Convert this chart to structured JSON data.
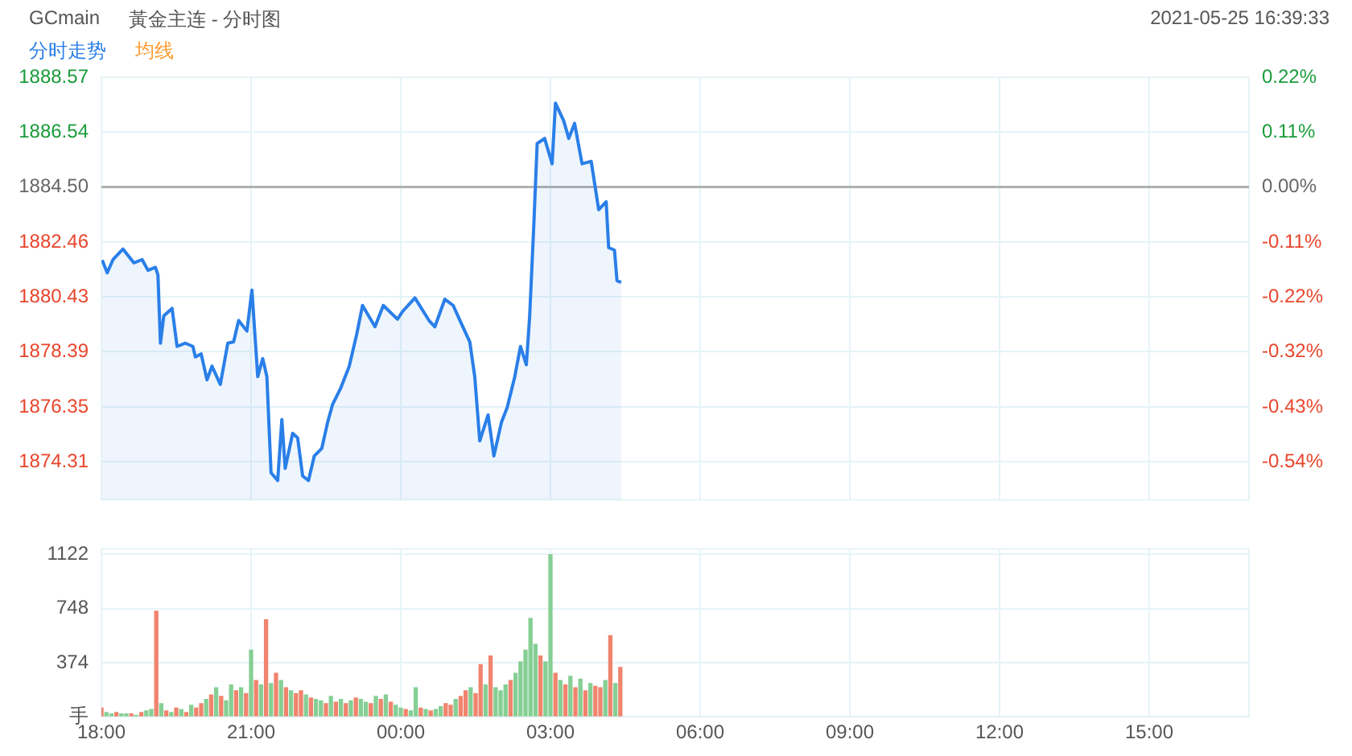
{
  "chart_data": [
    {
      "type": "area",
      "title": "GCmain",
      "subtitle": "黃金主连 - 分时图",
      "annotations": [
        "2021-05-25 16:39:33"
      ],
      "xlim": [
        "2021-05-24T18:00",
        "2021-05-25T17:00"
      ],
      "xticks": [
        {
          "value": "2021-05-24T18:00",
          "label": null
        },
        {
          "value": "2021-05-24T21:00",
          "label": null
        },
        {
          "value": "2021-05-25T00:00",
          "label": null
        },
        {
          "value": "2021-05-25T03:00",
          "label": null
        },
        {
          "value": "2021-05-25T06:00",
          "label": null
        },
        {
          "value": "2021-05-25T09:00",
          "label": null
        },
        {
          "value": "2021-05-25T12:00",
          "label": null
        },
        {
          "value": "2021-05-25T15:00",
          "label": null
        }
      ],
      "ylim": [
        1872.9,
        1888.57
      ],
      "yticks": [
        1874.31,
        1876.35,
        1878.39,
        1880.43,
        1882.46,
        {
          "value": 1884.5,
          "label": "1884.50"
        },
        1886.54,
        1888.57
      ],
      "y2lim": [
        -0.6155,
        0.216
      ],
      "y2ticks": [
        {
          "value": -0.5407,
          "label": "-0.54%"
        },
        {
          "value": -0.4325,
          "label": "-0.43%"
        },
        {
          "value": -0.3242,
          "label": "-0.32%"
        },
        {
          "value": -0.2165,
          "label": "-0.22%"
        },
        {
          "value": -0.1083,
          "label": "-0.11%"
        },
        {
          "value": 0,
          "label": "0.00%"
        },
        {
          "value": 0.1083,
          "label": "0.11%"
        },
        {
          "value": 0.216,
          "label": "0.22%"
        }
      ],
      "tick_labels": "y",
      "grid": true,
      "legend": "top left",
      "marker": "none",
      "line_style": "solid",
      "ref_lines": [
        {
          "axis": "y",
          "value": 1884.5,
          "color": "#b0b0b0"
        }
      ],
      "series": [
        {
          "name": "分时走势",
          "color": "#2a7fe8",
          "x": [
            "2021-05-24T18:01",
            "2021-05-24T18:07",
            "2021-05-24T18:14",
            "2021-05-24T18:26",
            "2021-05-24T18:39",
            "2021-05-24T18:49",
            "2021-05-24T18:56",
            "2021-05-24T19:05",
            "2021-05-24T19:08",
            "2021-05-24T19:11",
            "2021-05-24T19:15",
            "2021-05-24T19:25",
            "2021-05-24T19:31",
            "2021-05-24T19:41",
            "2021-05-24T19:50",
            "2021-05-24T19:53",
            "2021-05-24T20:00",
            "2021-05-24T20:07",
            "2021-05-24T20:13",
            "2021-05-24T20:23",
            "2021-05-24T20:32",
            "2021-05-24T20:39",
            "2021-05-24T20:45",
            "2021-05-24T20:55",
            "2021-05-24T21:01",
            "2021-05-24T21:08",
            "2021-05-24T21:14",
            "2021-05-24T21:19",
            "2021-05-24T21:24",
            "2021-05-24T21:32",
            "2021-05-24T21:37",
            "2021-05-24T21:41",
            "2021-05-24T21:50",
            "2021-05-24T21:56",
            "2021-05-24T22:02",
            "2021-05-24T22:09",
            "2021-05-24T22:16",
            "2021-05-24T22:25",
            "2021-05-24T22:32",
            "2021-05-24T22:38",
            "2021-05-24T22:48",
            "2021-05-24T22:58",
            "2021-05-24T23:07",
            "2021-05-24T23:14",
            "2021-05-24T23:29",
            "2021-05-24T23:39",
            "2021-05-24T23:56",
            "2021-05-25T00:02",
            "2021-05-25T00:17",
            "2021-05-25T00:34",
            "2021-05-25T00:41",
            "2021-05-25T00:53",
            "2021-05-25T01:03",
            "2021-05-25T01:13",
            "2021-05-25T01:23",
            "2021-05-25T01:29",
            "2021-05-25T01:35",
            "2021-05-25T01:45",
            "2021-05-25T01:52",
            "2021-05-25T02:01",
            "2021-05-25T02:08",
            "2021-05-25T02:17",
            "2021-05-25T02:24",
            "2021-05-25T02:31",
            "2021-05-25T02:35",
            "2021-05-25T02:40",
            "2021-05-25T02:44",
            "2021-05-25T02:53",
            "2021-05-25T03:02",
            "2021-05-25T03:06",
            "2021-05-25T03:16",
            "2021-05-25T03:22",
            "2021-05-25T03:29",
            "2021-05-25T03:38",
            "2021-05-25T03:49",
            "2021-05-25T03:58",
            "2021-05-25T04:07",
            "2021-05-25T04:10",
            "2021-05-25T04:17",
            "2021-05-25T04:20",
            "2021-05-25T04:25"
          ],
          "values": [
            1881.79,
            1881.32,
            1881.81,
            1882.2,
            1881.69,
            1881.81,
            1881.41,
            1881.52,
            1881.24,
            1878.71,
            1879.72,
            1880.0,
            1878.59,
            1878.71,
            1878.59,
            1878.2,
            1878.31,
            1877.35,
            1877.86,
            1877.18,
            1878.71,
            1878.76,
            1879.55,
            1879.16,
            1880.68,
            1877.47,
            1878.14,
            1877.47,
            1873.91,
            1873.62,
            1875.88,
            1874.07,
            1875.37,
            1875.2,
            1873.79,
            1873.62,
            1874.53,
            1874.81,
            1875.77,
            1876.44,
            1877.06,
            1877.85,
            1879.04,
            1880.11,
            1879.32,
            1880.11,
            1879.6,
            1879.88,
            1880.39,
            1879.55,
            1879.32,
            1880.34,
            1880.11,
            1879.43,
            1878.76,
            1877.46,
            1875.09,
            1876.05,
            1874.53,
            1875.77,
            1876.33,
            1877.46,
            1878.59,
            1877.91,
            1879.71,
            1883.1,
            1886.11,
            1886.3,
            1885.36,
            1887.61,
            1886.95,
            1886.3,
            1886.86,
            1885.36,
            1885.45,
            1883.66,
            1883.95,
            1882.25,
            1882.16,
            1881.03,
            1880.96
          ]
        },
        {
          "name": "均线",
          "color": "#ff9a2e"
        }
      ]
    },
    {
      "type": "bar",
      "xlim": [
        "2021-05-24T18:00",
        "2021-05-25T17:00"
      ],
      "xticks": [
        {
          "value": "2021-05-24T18:00",
          "label": "18:00"
        },
        {
          "value": "2021-05-24T21:00",
          "label": "21:00"
        },
        {
          "value": "2021-05-25T00:00",
          "label": "00:00"
        },
        {
          "value": "2021-05-25T03:00",
          "label": "03:00"
        },
        {
          "value": "2021-05-25T06:00",
          "label": "06:00"
        },
        {
          "value": "2021-05-25T09:00",
          "label": "09:00"
        },
        {
          "value": "2021-05-25T12:00",
          "label": "12:00"
        },
        {
          "value": "2021-05-25T15:00",
          "label": "15:00"
        }
      ],
      "ylim": [
        0,
        1160
      ],
      "yticks": [
        {
          "value": 0,
          "label": "手"
        },
        374,
        748,
        1122
      ],
      "grid": true,
      "x": [
        "2021-05-24T18:00",
        "2021-05-24T18:06",
        "2021-05-24T18:12",
        "2021-05-24T18:18",
        "2021-05-24T18:24",
        "2021-05-24T18:30",
        "2021-05-24T18:36",
        "2021-05-24T18:42",
        "2021-05-24T18:48",
        "2021-05-24T18:54",
        "2021-05-24T19:00",
        "2021-05-24T19:06",
        "2021-05-24T19:12",
        "2021-05-24T19:18",
        "2021-05-24T19:24",
        "2021-05-24T19:30",
        "2021-05-24T19:36",
        "2021-05-24T19:42",
        "2021-05-24T19:48",
        "2021-05-24T19:54",
        "2021-05-24T20:00",
        "2021-05-24T20:06",
        "2021-05-24T20:12",
        "2021-05-24T20:18",
        "2021-05-24T20:24",
        "2021-05-24T20:30",
        "2021-05-24T20:36",
        "2021-05-24T20:42",
        "2021-05-24T20:48",
        "2021-05-24T20:54",
        "2021-05-24T21:00",
        "2021-05-24T21:06",
        "2021-05-24T21:12",
        "2021-05-24T21:18",
        "2021-05-24T21:24",
        "2021-05-24T21:30",
        "2021-05-24T21:36",
        "2021-05-24T21:42",
        "2021-05-24T21:48",
        "2021-05-24T21:54",
        "2021-05-24T22:00",
        "2021-05-24T22:06",
        "2021-05-24T22:12",
        "2021-05-24T22:18",
        "2021-05-24T22:24",
        "2021-05-24T22:30",
        "2021-05-24T22:36",
        "2021-05-24T22:42",
        "2021-05-24T22:48",
        "2021-05-24T22:54",
        "2021-05-24T23:00",
        "2021-05-24T23:06",
        "2021-05-24T23:12",
        "2021-05-24T23:18",
        "2021-05-24T23:24",
        "2021-05-24T23:30",
        "2021-05-24T23:36",
        "2021-05-24T23:42",
        "2021-05-24T23:48",
        "2021-05-24T23:54",
        "2021-05-25T00:00",
        "2021-05-25T00:06",
        "2021-05-25T00:12",
        "2021-05-25T00:18",
        "2021-05-25T00:24",
        "2021-05-25T00:30",
        "2021-05-25T00:36",
        "2021-05-25T00:42",
        "2021-05-25T00:48",
        "2021-05-25T00:54",
        "2021-05-25T01:00",
        "2021-05-25T01:06",
        "2021-05-25T01:12",
        "2021-05-25T01:18",
        "2021-05-25T01:24",
        "2021-05-25T01:30",
        "2021-05-25T01:36",
        "2021-05-25T01:42",
        "2021-05-25T01:48",
        "2021-05-25T01:54",
        "2021-05-25T02:00",
        "2021-05-25T02:06",
        "2021-05-25T02:12",
        "2021-05-25T02:18",
        "2021-05-25T02:24",
        "2021-05-25T02:30",
        "2021-05-25T02:36",
        "2021-05-25T02:42",
        "2021-05-25T02:48",
        "2021-05-25T02:54",
        "2021-05-25T03:00",
        "2021-05-25T03:06",
        "2021-05-25T03:12",
        "2021-05-25T03:18",
        "2021-05-25T03:24",
        "2021-05-25T03:30",
        "2021-05-25T03:36",
        "2021-05-25T03:42",
        "2021-05-25T03:48",
        "2021-05-25T03:54",
        "2021-05-25T04:00",
        "2021-05-25T04:06",
        "2021-05-25T04:12",
        "2021-05-25T04:18",
        "2021-05-25T04:24"
      ],
      "values": [
        60,
        30,
        20,
        30,
        20,
        20,
        20,
        10,
        30,
        40,
        50,
        730,
        90,
        40,
        30,
        60,
        50,
        30,
        80,
        60,
        90,
        120,
        150,
        200,
        140,
        110,
        220,
        180,
        200,
        160,
        460,
        250,
        220,
        670,
        230,
        300,
        250,
        200,
        180,
        160,
        180,
        150,
        130,
        120,
        110,
        90,
        140,
        100,
        120,
        90,
        110,
        130,
        120,
        100,
        90,
        140,
        120,
        150,
        100,
        80,
        60,
        50,
        40,
        200,
        60,
        50,
        40,
        50,
        70,
        90,
        80,
        120,
        140,
        180,
        200,
        160,
        360,
        220,
        420,
        200,
        180,
        220,
        250,
        300,
        380,
        460,
        680,
        500,
        420,
        380,
        1120,
        300,
        250,
        220,
        280,
        200,
        260,
        180,
        230,
        210,
        200,
        250,
        560,
        230,
        340
      ],
      "colors": [
        "#f0846e",
        "#86cf94",
        "#86cf94",
        "#f0846e",
        "#86cf94",
        "#86cf94",
        "#f0846e",
        "#86cf94",
        "#f0846e",
        "#86cf94",
        "#86cf94",
        "#f0846e",
        "#86cf94",
        "#f0846e",
        "#86cf94",
        "#f0846e",
        "#86cf94",
        "#f0846e",
        "#86cf94",
        "#f0846e",
        "#f0846e",
        "#86cf94",
        "#f0846e",
        "#86cf94",
        "#f0846e",
        "#86cf94",
        "#86cf94",
        "#f0846e",
        "#86cf94",
        "#f0846e",
        "#86cf94",
        "#f0846e",
        "#86cf94",
        "#f0846e",
        "#86cf94",
        "#f0846e",
        "#86cf94",
        "#f0846e",
        "#86cf94",
        "#f0846e",
        "#f0846e",
        "#86cf94",
        "#f0846e",
        "#86cf94",
        "#86cf94",
        "#f0846e",
        "#86cf94",
        "#f0846e",
        "#86cf94",
        "#f0846e",
        "#86cf94",
        "#f0846e",
        "#86cf94",
        "#86cf94",
        "#f0846e",
        "#86cf94",
        "#f0846e",
        "#86cf94",
        "#f0846e",
        "#86cf94",
        "#86cf94",
        "#f0846e",
        "#86cf94",
        "#86cf94",
        "#f0846e",
        "#86cf94",
        "#f0846e",
        "#86cf94",
        "#86cf94",
        "#f0846e",
        "#f0846e",
        "#86cf94",
        "#f0846e",
        "#f0846e",
        "#86cf94",
        "#f0846e",
        "#f0846e",
        "#86cf94",
        "#f0846e",
        "#86cf94",
        "#86cf94",
        "#86cf94",
        "#f0846e",
        "#86cf94",
        "#86cf94",
        "#86cf94",
        "#86cf94",
        "#86cf94",
        "#f0846e",
        "#86cf94",
        "#86cf94",
        "#f0846e",
        "#86cf94",
        "#f0846e",
        "#86cf94",
        "#f0846e",
        "#86cf94",
        "#f0846e",
        "#86cf94",
        "#f0846e",
        "#f0846e",
        "#86cf94",
        "#f0846e",
        "#86cf94",
        "#f0846e"
      ]
    }
  ]
}
